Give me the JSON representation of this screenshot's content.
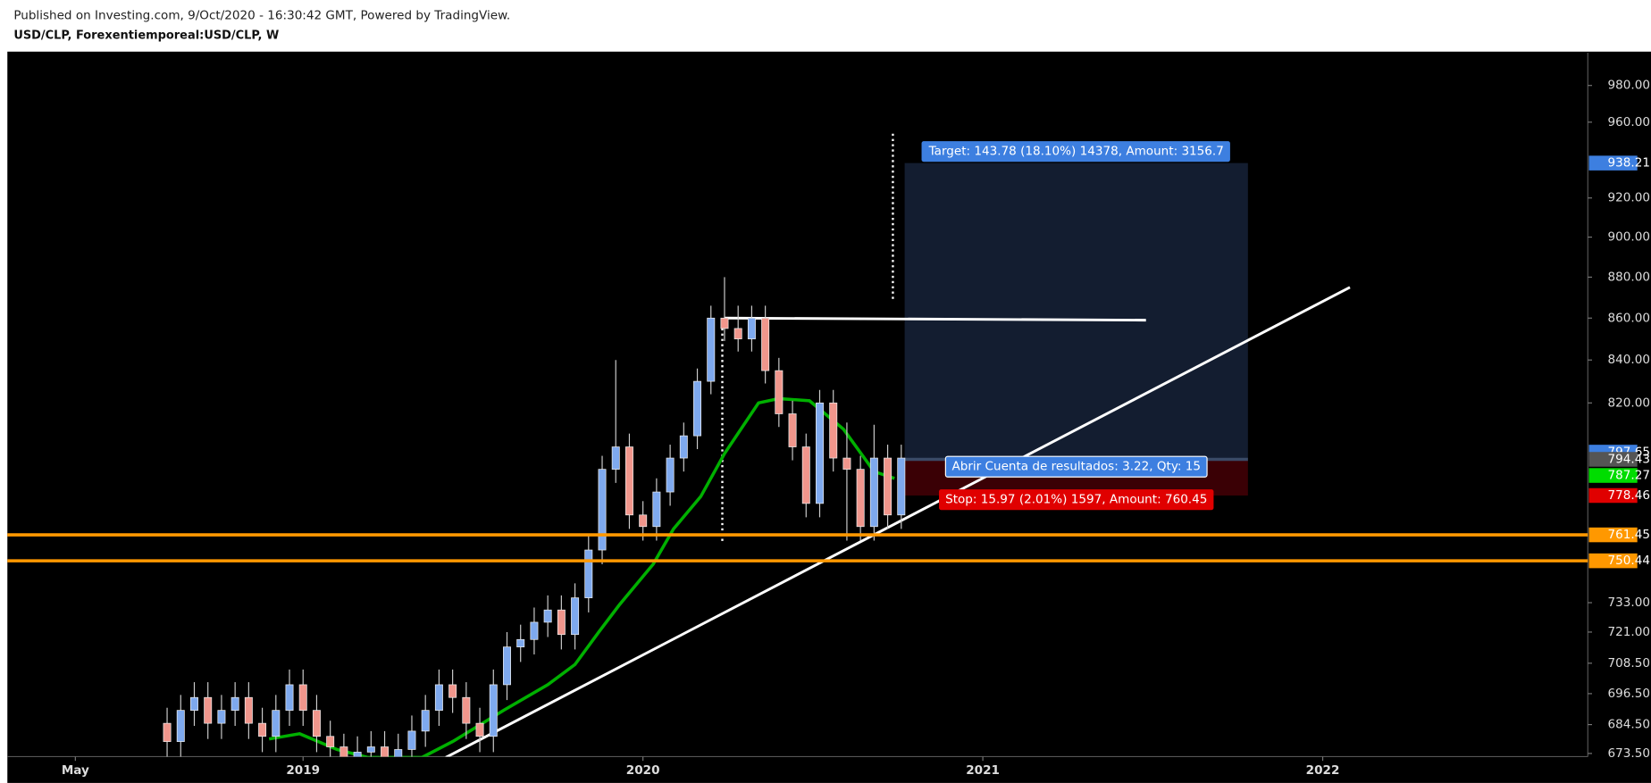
{
  "header": {
    "published": "Published on Investing.com, 9/Oct/2020 - 16:30:42 GMT, Powered by TradingView.",
    "symbol": "USD/CLP, Forexentiemporeal:USD/CLP, W"
  },
  "chart_data": {
    "type": "candlestick",
    "x": [
      2018.6,
      2018.64,
      2018.68,
      2018.72,
      2018.76,
      2018.8,
      2018.84,
      2018.88,
      2018.92,
      2018.96,
      2019.0,
      2019.04,
      2019.08,
      2019.12,
      2019.16,
      2019.2,
      2019.24,
      2019.28,
      2019.32,
      2019.36,
      2019.4,
      2019.44,
      2019.48,
      2019.52,
      2019.56,
      2019.6,
      2019.64,
      2019.68,
      2019.72,
      2019.76,
      2019.8,
      2019.84,
      2019.88,
      2019.92,
      2019.96,
      2020.0,
      2020.04,
      2020.08,
      2020.12,
      2020.16,
      2020.2,
      2020.24,
      2020.28,
      2020.32,
      2020.36,
      2020.4,
      2020.44,
      2020.48,
      2020.52,
      2020.56,
      2020.6,
      2020.64,
      2020.68,
      2020.72,
      2020.76
    ],
    "open": [
      685,
      678,
      690,
      695,
      685,
      690,
      695,
      685,
      680,
      690,
      700,
      690,
      680,
      676,
      672,
      674,
      676,
      672,
      675,
      682,
      690,
      700,
      695,
      685,
      680,
      700,
      715,
      718,
      725,
      730,
      720,
      735,
      755,
      790,
      800,
      770,
      765,
      780,
      795,
      805,
      830,
      860,
      855,
      850,
      860,
      835,
      815,
      800,
      775,
      820,
      795,
      790,
      765,
      795,
      770
    ],
    "high": [
      691,
      696,
      701,
      701,
      696,
      701,
      701,
      691,
      696,
      706,
      706,
      696,
      686,
      681,
      680,
      682,
      682,
      681,
      688,
      696,
      706,
      706,
      701,
      691,
      706,
      721,
      724,
      731,
      736,
      736,
      741,
      761,
      796,
      840,
      806,
      776,
      786,
      801,
      811,
      836,
      866,
      880,
      866,
      866,
      866,
      841,
      821,
      806,
      826,
      826,
      811,
      796,
      810,
      801,
      801
    ],
    "low": [
      672,
      672,
      684,
      679,
      679,
      684,
      679,
      674,
      674,
      684,
      684,
      674,
      670,
      666,
      666,
      668,
      666,
      666,
      669,
      676,
      684,
      689,
      679,
      674,
      674,
      694,
      709,
      712,
      719,
      714,
      714,
      729,
      749,
      784,
      764,
      759,
      759,
      774,
      789,
      799,
      824,
      849,
      844,
      844,
      829,
      809,
      794,
      769,
      769,
      789,
      759,
      759,
      759,
      764,
      764
    ],
    "close": [
      678,
      690,
      695,
      685,
      690,
      695,
      685,
      680,
      690,
      700,
      690,
      680,
      676,
      672,
      674,
      676,
      672,
      675,
      682,
      690,
      700,
      695,
      685,
      680,
      700,
      715,
      718,
      725,
      730,
      720,
      735,
      755,
      790,
      800,
      770,
      765,
      780,
      795,
      805,
      830,
      860,
      855,
      850,
      860,
      835,
      815,
      800,
      775,
      820,
      795,
      790,
      765,
      795,
      770,
      795
    ],
    "up_color": "#7ea9ee",
    "down_color": "#f0968c",
    "xlim": [
      2018.13,
      2022.78
    ],
    "xticks": [
      {
        "value": 2018.33,
        "label": "May"
      },
      2019,
      2020,
      2021,
      2022
    ],
    "ylim": [
      672.3,
      998.2
    ],
    "ylog": true,
    "yticks": [
      {
        "value": 673.5,
        "label": "673.50"
      },
      {
        "value": 684.5,
        "label": "684.50"
      },
      {
        "value": 696.5,
        "label": "696.50"
      },
      {
        "value": 708.5,
        "label": "708.50"
      },
      {
        "value": 721,
        "label": "721.00"
      },
      {
        "value": 733,
        "label": "733.00"
      },
      {
        "value": 820,
        "label": "820.00"
      },
      {
        "value": 840,
        "label": "840.00"
      },
      {
        "value": 860,
        "label": "860.00"
      },
      {
        "value": 880,
        "label": "880.00"
      },
      {
        "value": 900,
        "label": "900.00"
      },
      {
        "value": 920,
        "label": "920.00"
      },
      {
        "value": 960,
        "label": "960.00"
      },
      {
        "value": 980,
        "label": "980.00"
      }
    ],
    "moving_average": {
      "color": "#00b000",
      "x": [
        2018.9,
        2018.99,
        2019.1,
        2019.19,
        2019.35,
        2019.44,
        2019.59,
        2019.72,
        2019.8,
        2019.87,
        2019.93,
        2020.03,
        2020.09,
        2020.17,
        2020.24,
        2020.34,
        2020.4,
        2020.49,
        2020.59,
        2020.68,
        2020.74
      ],
      "values": [
        679,
        681,
        675,
        672,
        672,
        678,
        690,
        700,
        708,
        721,
        732,
        749,
        764,
        778,
        797,
        820,
        822,
        821,
        808,
        789,
        786
      ]
    },
    "trend_line": {
      "color": "#ffffff",
      "x": [
        2019.42,
        2022.08
      ],
      "values": [
        672,
        875
      ]
    },
    "horizontal_line": {
      "color": "#ffffff",
      "x": [
        2020.24,
        2021.48
      ],
      "values": [
        860,
        859
      ]
    },
    "levels": [
      {
        "value": 761.45,
        "color": "#ff9800"
      },
      {
        "value": 750.44,
        "color": "#ff9800"
      }
    ],
    "price_labels": [
      {
        "value": 938.21,
        "color": "#3d7fe0"
      },
      {
        "value": 797.65,
        "color": "#3d7fe0"
      },
      {
        "value": 794.43,
        "color": "#555555"
      },
      {
        "value": 787.27,
        "color": "#00dd00"
      },
      {
        "value": 778.46,
        "color": "#e00000"
      }
    ],
    "position": {
      "x": [
        2020.77,
        2021.78
      ],
      "entry": 794.43,
      "target": 938.21,
      "stop": 778.46,
      "target_label": "Target: 143.78 (18.10%) 14378, Amount: 3156.7",
      "center_label": "Abrir Cuenta de resultados: 3.22, Qty: 15",
      "stop_label": "Stop: 15.97 (2.01%) 1597, Amount: 760.45"
    }
  }
}
